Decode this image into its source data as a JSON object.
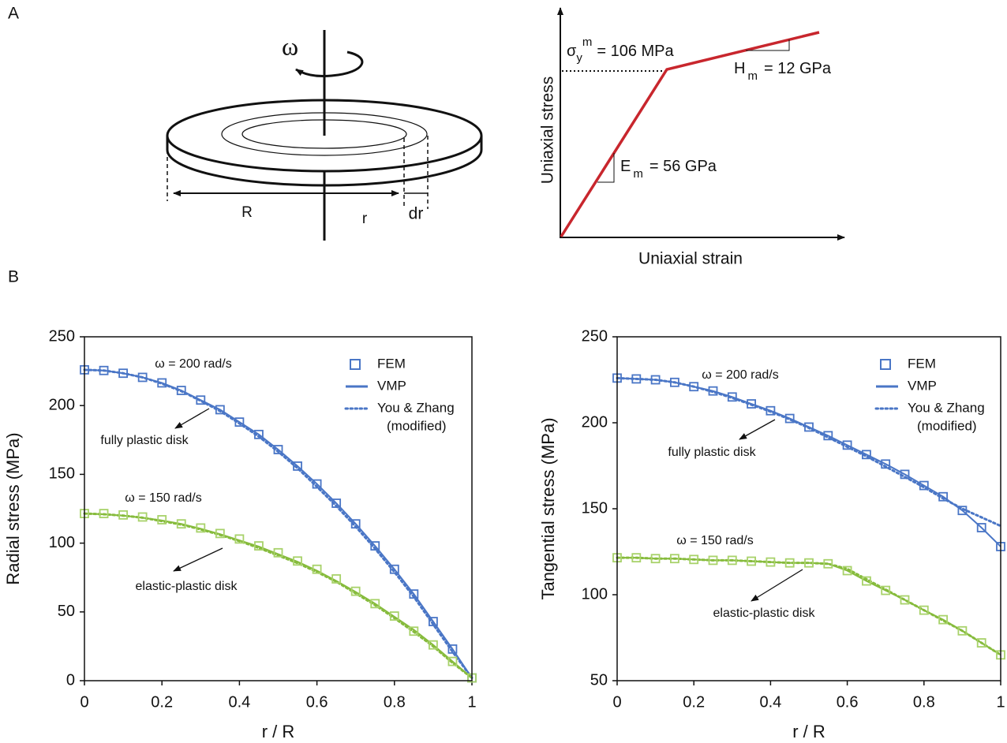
{
  "panel_labels": [
    "A",
    "B"
  ],
  "diagram": {
    "omega": "ω",
    "R": "R",
    "r": "r",
    "dr": "dr"
  },
  "stress_strain": {
    "xlabel": "Uniaxial strain",
    "ylabel": "Uniaxial stress",
    "yield_label": {
      "symbol": "σ",
      "sub": "y",
      "sup": "m",
      "text": "= 106 MPa"
    },
    "E_label": {
      "symbol": "E",
      "sub": "m",
      "text": "= 56 GPa"
    },
    "H_label": {
      "symbol": "H",
      "sub": "m",
      "text": "= 12 GPa"
    },
    "color": "#c8262d"
  },
  "chart_data": [
    {
      "type": "line",
      "xlabel": "r  / R",
      "ylabel": "Radial stress (MPa)",
      "x": [
        0,
        0.05,
        0.1,
        0.15,
        0.2,
        0.25,
        0.3,
        0.35,
        0.4,
        0.45,
        0.5,
        0.55,
        0.6,
        0.65,
        0.7,
        0.75,
        0.8,
        0.85,
        0.9,
        0.95,
        1
      ],
      "xlim": [
        0,
        1
      ],
      "xticks": [
        0,
        0.2,
        0.4,
        0.6,
        0.8,
        1
      ],
      "ylim": [
        0,
        250
      ],
      "yticks": [
        0,
        50,
        100,
        150,
        200,
        250
      ],
      "series": [
        {
          "style": "solid",
          "color": "#4a76c6",
          "values": [
            226,
            225.5,
            223.5,
            220.5,
            216.5,
            211,
            204,
            197,
            188,
            179,
            168,
            156,
            143,
            129,
            114,
            98,
            81,
            63,
            43,
            23,
            2
          ]
        },
        {
          "style": "dotted",
          "color": "#4a76c6",
          "values": [
            226,
            225.5,
            223.5,
            220.5,
            216,
            210.5,
            203.5,
            196,
            187,
            177.5,
            166.5,
            154.5,
            141,
            127,
            112,
            96,
            79,
            61,
            41,
            21,
            2
          ]
        },
        {
          "style": "marker",
          "color": "#4a76c6",
          "values": [
            226,
            225.5,
            223.5,
            220.5,
            216.5,
            211,
            204,
            197,
            188,
            179,
            168,
            156,
            143,
            129,
            114,
            98,
            81,
            63,
            43,
            23,
            2
          ]
        },
        {
          "style": "solid",
          "color": "#86bb3c",
          "values": [
            121.5,
            121,
            120,
            118.5,
            116.5,
            114,
            110.5,
            106.5,
            102,
            97.5,
            92,
            86.5,
            80,
            72.5,
            64.5,
            56,
            46.5,
            37,
            26,
            14,
            2
          ]
        },
        {
          "style": "dotted",
          "color": "#86bb3c",
          "values": [
            121.5,
            121,
            120,
            118.5,
            116,
            113.5,
            110,
            106,
            101.5,
            96.5,
            91,
            85.5,
            79,
            72,
            63.5,
            55,
            45.5,
            35.5,
            25,
            13,
            2
          ]
        },
        {
          "style": "marker",
          "color": "#a8d26a",
          "values": [
            121.5,
            121.5,
            120.5,
            119,
            117,
            114,
            111,
            107,
            103,
            98,
            93,
            87,
            81,
            74,
            65,
            56,
            47,
            36,
            26,
            14,
            2
          ]
        }
      ],
      "legend": [
        {
          "style": "marker",
          "color": "#4a76c6",
          "lines": [
            "FEM"
          ]
        },
        {
          "style": "solid",
          "color": "#4a76c6",
          "lines": [
            "VMP"
          ]
        },
        {
          "style": "dotted",
          "color": "#4a76c6",
          "lines": [
            "You & Zhang",
            "(modified)"
          ]
        }
      ],
      "annotations": [
        "ω = 200 rad/s",
        "fully plastic disk",
        "ω = 150 rad/s",
        "elastic-plastic disk"
      ]
    },
    {
      "type": "line",
      "xlabel": "r  / R",
      "ylabel": "Tangential stress (MPa)",
      "x": [
        0,
        0.05,
        0.1,
        0.15,
        0.2,
        0.25,
        0.3,
        0.35,
        0.4,
        0.45,
        0.5,
        0.55,
        0.6,
        0.65,
        0.7,
        0.75,
        0.8,
        0.85,
        0.9,
        0.95,
        1
      ],
      "xlim": [
        0,
        1
      ],
      "xticks": [
        0,
        0.2,
        0.4,
        0.6,
        0.8,
        1
      ],
      "ylim": [
        50,
        250
      ],
      "yticks": [
        50,
        100,
        150,
        200,
        250
      ],
      "series": [
        {
          "style": "solid",
          "color": "#4a76c6",
          "values": [
            226,
            225.5,
            225,
            223.5,
            221,
            218.5,
            215,
            211,
            207,
            202.5,
            197.5,
            192.5,
            187,
            181.5,
            176,
            170,
            163.5,
            157,
            149,
            139,
            128
          ]
        },
        {
          "style": "dotted",
          "color": "#4a76c6",
          "values": [
            226,
            225.5,
            225,
            223.5,
            221,
            218,
            214.5,
            210.5,
            206.5,
            202,
            197,
            191.5,
            186,
            180.5,
            174.5,
            168.5,
            162.5,
            156,
            150,
            145,
            140
          ]
        },
        {
          "style": "marker",
          "color": "#4a76c6",
          "values": [
            226,
            225.5,
            225,
            223.5,
            221,
            218.5,
            215,
            211,
            207,
            202.5,
            197.5,
            192.5,
            187,
            181.5,
            176,
            170,
            163.5,
            157,
            149,
            139,
            128
          ]
        },
        {
          "style": "solid",
          "color": "#86bb3c",
          "values": [
            121.5,
            121.5,
            121,
            121,
            120.5,
            120,
            120,
            119.5,
            119,
            118.5,
            118.5,
            118,
            114,
            108,
            102.5,
            97,
            91,
            85.5,
            79,
            72,
            65
          ]
        },
        {
          "style": "dotted",
          "color": "#86bb3c",
          "values": [
            121.5,
            121.5,
            121,
            121,
            120.5,
            120,
            120,
            119.5,
            119,
            118.5,
            118.5,
            118,
            115,
            109,
            103,
            97,
            91,
            85,
            79,
            72,
            65
          ]
        },
        {
          "style": "marker",
          "color": "#a8d26a",
          "values": [
            121.5,
            121.5,
            121,
            121,
            120.5,
            120,
            120,
            119.5,
            119,
            118.5,
            118.5,
            118,
            114,
            108,
            102.5,
            97,
            91,
            85.5,
            79,
            72,
            65
          ]
        }
      ],
      "legend": [
        {
          "style": "marker",
          "color": "#4a76c6",
          "lines": [
            "FEM"
          ]
        },
        {
          "style": "solid",
          "color": "#4a76c6",
          "lines": [
            "VMP"
          ]
        },
        {
          "style": "dotted",
          "color": "#4a76c6",
          "lines": [
            "You & Zhang",
            "(modified)"
          ]
        }
      ],
      "annotations": [
        "ω = 200 rad/s",
        "fully plastic disk",
        "ω = 150 rad/s",
        "elastic-plastic disk"
      ]
    }
  ]
}
